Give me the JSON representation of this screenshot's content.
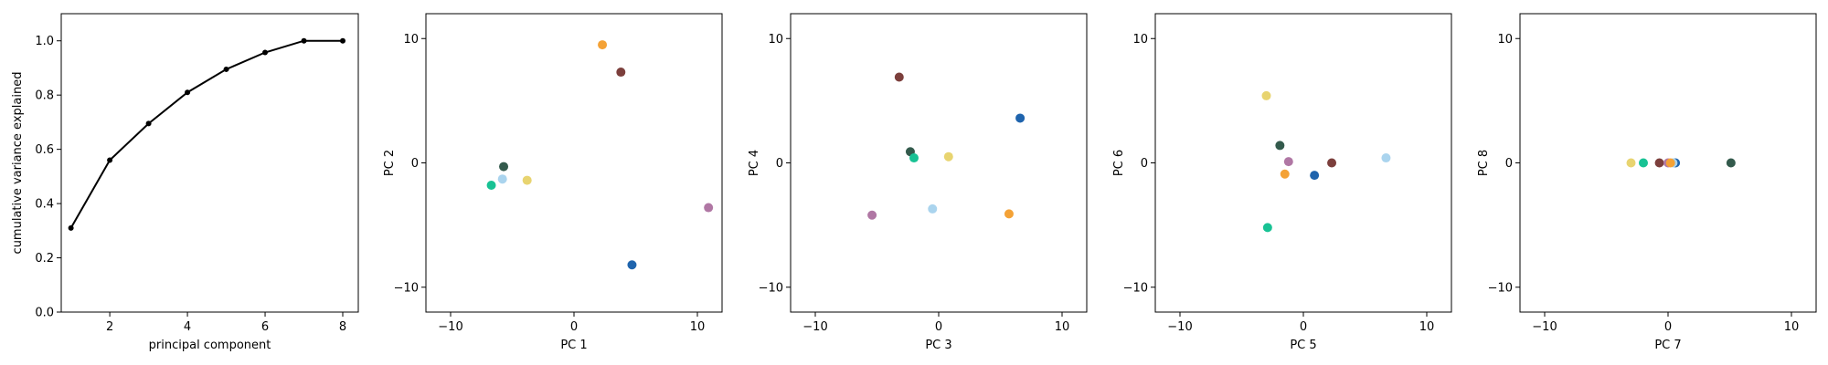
{
  "chart_data": [
    {
      "type": "line",
      "xlabel": "principal component",
      "ylabel": "cumulative variance explained",
      "xlim": [
        0.75,
        8.4
      ],
      "ylim": [
        0.0,
        1.1
      ],
      "xticks": [
        2,
        4,
        6,
        8
      ],
      "yticks": [
        0.0,
        0.2,
        0.4,
        0.6,
        0.8,
        1.0
      ],
      "xtick_labels": [
        "2",
        "4",
        "6",
        "8"
      ],
      "ytick_labels": [
        "0.0",
        "0.2",
        "0.4",
        "0.6",
        "0.8",
        "1.0"
      ],
      "grid": false,
      "series": [
        {
          "x": [
            1,
            2,
            3,
            4,
            5,
            6,
            7,
            8
          ],
          "y": [
            0.31,
            0.56,
            0.695,
            0.81,
            0.895,
            0.957,
            1.0,
            1.0
          ],
          "color": "#000000"
        }
      ]
    },
    {
      "type": "scatter",
      "xlabel": "PC 1",
      "ylabel": "PC 2",
      "xlim": [
        -12,
        12
      ],
      "ylim": [
        -12,
        12
      ],
      "xticks": [
        -10,
        0,
        10
      ],
      "yticks": [
        -10,
        0,
        10
      ],
      "xtick_labels": [
        "−10",
        "0",
        "10"
      ],
      "ytick_labels": [
        "−10",
        "0",
        "10"
      ],
      "grid": false,
      "points": [
        {
          "x": 2.3,
          "y": 9.5,
          "color": "#f4a236"
        },
        {
          "x": 3.8,
          "y": 7.3,
          "color": "#7c3f3c"
        },
        {
          "x": -5.7,
          "y": -0.3,
          "color": "#335a4c"
        },
        {
          "x": -5.8,
          "y": -1.3,
          "color": "#aad4ee"
        },
        {
          "x": -3.8,
          "y": -1.4,
          "color": "#e8d470"
        },
        {
          "x": -6.7,
          "y": -1.8,
          "color": "#18c294"
        },
        {
          "x": 10.9,
          "y": -3.6,
          "color": "#b077a4"
        },
        {
          "x": 4.7,
          "y": -8.2,
          "color": "#1f64ad"
        }
      ]
    },
    {
      "type": "scatter",
      "xlabel": "PC 3",
      "ylabel": "PC 4",
      "xlim": [
        -12,
        12
      ],
      "ylim": [
        -12,
        12
      ],
      "xticks": [
        -10,
        0,
        10
      ],
      "yticks": [
        -10,
        0,
        10
      ],
      "xtick_labels": [
        "−10",
        "0",
        "10"
      ],
      "ytick_labels": [
        "−10",
        "0",
        "10"
      ],
      "grid": false,
      "points": [
        {
          "x": -3.2,
          "y": 6.9,
          "color": "#7c3f3c"
        },
        {
          "x": 6.6,
          "y": 3.6,
          "color": "#1f64ad"
        },
        {
          "x": -2.3,
          "y": 0.9,
          "color": "#335a4c"
        },
        {
          "x": -2.0,
          "y": 0.4,
          "color": "#18c294"
        },
        {
          "x": 0.8,
          "y": 0.5,
          "color": "#e8d470"
        },
        {
          "x": -0.5,
          "y": -3.7,
          "color": "#aad4ee"
        },
        {
          "x": 5.7,
          "y": -4.1,
          "color": "#f4a236"
        },
        {
          "x": -5.4,
          "y": -4.2,
          "color": "#b077a4"
        }
      ]
    },
    {
      "type": "scatter",
      "xlabel": "PC 5",
      "ylabel": "PC 6",
      "xlim": [
        -12,
        12
      ],
      "ylim": [
        -12,
        12
      ],
      "xticks": [
        -10,
        0,
        10
      ],
      "yticks": [
        -10,
        0,
        10
      ],
      "xtick_labels": [
        "−10",
        "0",
        "10"
      ],
      "ytick_labels": [
        "−10",
        "0",
        "10"
      ],
      "grid": false,
      "points": [
        {
          "x": -3.0,
          "y": 5.4,
          "color": "#e8d470"
        },
        {
          "x": -1.9,
          "y": 1.4,
          "color": "#335a4c"
        },
        {
          "x": -1.2,
          "y": 0.1,
          "color": "#b077a4"
        },
        {
          "x": 2.3,
          "y": 0.0,
          "color": "#7c3f3c"
        },
        {
          "x": 6.7,
          "y": 0.4,
          "color": "#aad4ee"
        },
        {
          "x": -1.5,
          "y": -0.9,
          "color": "#f4a236"
        },
        {
          "x": 0.9,
          "y": -1.0,
          "color": "#1f64ad"
        },
        {
          "x": -2.9,
          "y": -5.2,
          "color": "#18c294"
        }
      ]
    },
    {
      "type": "scatter",
      "xlabel": "PC 7",
      "ylabel": "PC 8",
      "xlim": [
        -12,
        12
      ],
      "ylim": [
        -12,
        12
      ],
      "xticks": [
        -10,
        0,
        10
      ],
      "yticks": [
        -10,
        0,
        10
      ],
      "xtick_labels": [
        "−10",
        "0",
        "10"
      ],
      "ytick_labels": [
        "−10",
        "0",
        "10"
      ],
      "grid": false,
      "points": [
        {
          "x": -3.0,
          "y": 0.0,
          "color": "#e8d470"
        },
        {
          "x": -2.0,
          "y": 0.0,
          "color": "#18c294"
        },
        {
          "x": -0.7,
          "y": 0.0,
          "color": "#7c3f3c"
        },
        {
          "x": 0.6,
          "y": 0.0,
          "color": "#1f64ad"
        },
        {
          "x": 0.4,
          "y": 0.0,
          "color": "#aad4ee"
        },
        {
          "x": 0.0,
          "y": 0.0,
          "color": "#b077a4"
        },
        {
          "x": 0.2,
          "y": 0.0,
          "color": "#f4a236"
        },
        {
          "x": 5.1,
          "y": 0.0,
          "color": "#335a4c"
        }
      ]
    }
  ]
}
